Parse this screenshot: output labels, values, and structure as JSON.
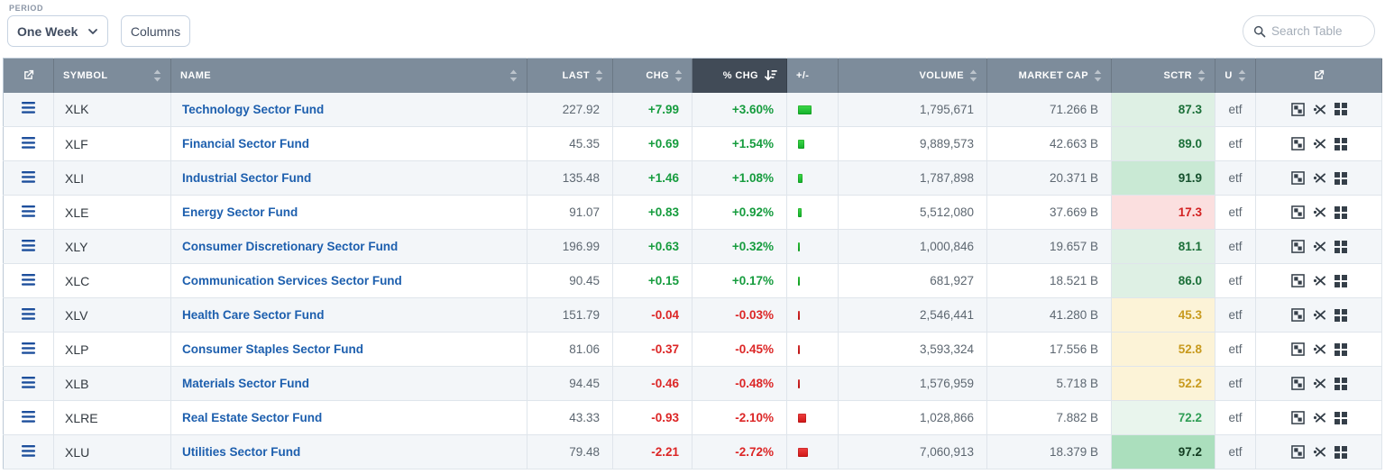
{
  "controls": {
    "period_label": "PERIOD",
    "period_value": "One Week",
    "columns_button": "Columns",
    "search_placeholder": "Search Table"
  },
  "colors": {
    "positive": "#169c3e",
    "negative": "#dc2626",
    "header_bg": "#7d8c9b",
    "header_sorted_bg": "#414b57",
    "link_blue": "#1d5fae"
  },
  "table": {
    "columns": [
      {
        "key": "open",
        "label": "",
        "align": "center",
        "icon": "external-link-icon",
        "sort": "none"
      },
      {
        "key": "symbol",
        "label": "SYMBOL",
        "align": "left",
        "sort": "idle"
      },
      {
        "key": "name",
        "label": "NAME",
        "align": "left",
        "sort": "idle"
      },
      {
        "key": "last",
        "label": "LAST",
        "align": "right",
        "sort": "idle"
      },
      {
        "key": "chg",
        "label": "CHG",
        "align": "right",
        "sort": "idle"
      },
      {
        "key": "pct",
        "label": "% CHG",
        "align": "right",
        "sort": "desc"
      },
      {
        "key": "bar",
        "label": "+/-",
        "align": "left",
        "sort": "none"
      },
      {
        "key": "volume",
        "label": "VOLUME",
        "align": "right",
        "sort": "idle"
      },
      {
        "key": "mcap",
        "label": "MARKET CAP",
        "align": "right",
        "sort": "idle"
      },
      {
        "key": "sctr",
        "label": "SCTR",
        "align": "right",
        "sort": "idle"
      },
      {
        "key": "u",
        "label": "U",
        "align": "center",
        "sort": "idle"
      },
      {
        "key": "actions",
        "label": "",
        "align": "center",
        "icon": "external-link-icon",
        "sort": "none"
      }
    ],
    "row_icons": [
      "menu-icon",
      "chart-icon",
      "perf-chart-icon",
      "gallery-view-icon"
    ],
    "rows": [
      {
        "symbol": "XLK",
        "name": "Technology Sector Fund",
        "last": "227.92",
        "chg": "+7.99",
        "pct": "+3.60%",
        "pct_num": 3.6,
        "volume": "1,795,671",
        "market_cap": "71.266 B",
        "sctr": "87.3",
        "sctr_bg": "#def0e4",
        "sctr_fg": "#1b6f38",
        "u": "etf"
      },
      {
        "symbol": "XLF",
        "name": "Financial Sector Fund",
        "last": "45.35",
        "chg": "+0.69",
        "pct": "+1.54%",
        "pct_num": 1.54,
        "volume": "9,889,573",
        "market_cap": "42.663 B",
        "sctr": "89.0",
        "sctr_bg": "#def0e4",
        "sctr_fg": "#1b6f38",
        "u": "etf"
      },
      {
        "symbol": "XLI",
        "name": "Industrial Sector Fund",
        "last": "135.48",
        "chg": "+1.46",
        "pct": "+1.08%",
        "pct_num": 1.08,
        "volume": "1,787,898",
        "market_cap": "20.371 B",
        "sctr": "91.9",
        "sctr_bg": "#c9e9d4",
        "sctr_fg": "#14502c",
        "u": "etf"
      },
      {
        "symbol": "XLE",
        "name": "Energy Sector Fund",
        "last": "91.07",
        "chg": "+0.83",
        "pct": "+0.92%",
        "pct_num": 0.92,
        "volume": "5,512,080",
        "market_cap": "37.669 B",
        "sctr": "17.3",
        "sctr_bg": "#fbdfdf",
        "sctr_fg": "#d32222",
        "u": "etf"
      },
      {
        "symbol": "XLY",
        "name": "Consumer Discretionary Sector Fund",
        "last": "196.99",
        "chg": "+0.63",
        "pct": "+0.32%",
        "pct_num": 0.32,
        "volume": "1,000,846",
        "market_cap": "19.657 B",
        "sctr": "81.1",
        "sctr_bg": "#def0e4",
        "sctr_fg": "#1b6f38",
        "u": "etf"
      },
      {
        "symbol": "XLC",
        "name": "Communication Services Sector Fund",
        "last": "90.45",
        "chg": "+0.15",
        "pct": "+0.17%",
        "pct_num": 0.17,
        "volume": "681,927",
        "market_cap": "18.521 B",
        "sctr": "86.0",
        "sctr_bg": "#def0e4",
        "sctr_fg": "#1b6f38",
        "u": "etf"
      },
      {
        "symbol": "XLV",
        "name": "Health Care Sector Fund",
        "last": "151.79",
        "chg": "-0.04",
        "pct": "-0.03%",
        "pct_num": -0.03,
        "volume": "2,546,441",
        "market_cap": "41.280 B",
        "sctr": "45.3",
        "sctr_bg": "#fcf3d7",
        "sctr_fg": "#c89a1e",
        "u": "etf"
      },
      {
        "symbol": "XLP",
        "name": "Consumer Staples Sector Fund",
        "last": "81.06",
        "chg": "-0.37",
        "pct": "-0.45%",
        "pct_num": -0.45,
        "volume": "3,593,324",
        "market_cap": "17.556 B",
        "sctr": "52.8",
        "sctr_bg": "#fcf3d7",
        "sctr_fg": "#c89a1e",
        "u": "etf"
      },
      {
        "symbol": "XLB",
        "name": "Materials Sector Fund",
        "last": "94.45",
        "chg": "-0.46",
        "pct": "-0.48%",
        "pct_num": -0.48,
        "volume": "1,576,959",
        "market_cap": "5.718 B",
        "sctr": "52.2",
        "sctr_bg": "#fcf3d7",
        "sctr_fg": "#c89a1e",
        "u": "etf"
      },
      {
        "symbol": "XLRE",
        "name": "Real Estate Sector Fund",
        "last": "43.33",
        "chg": "-0.93",
        "pct": "-2.10%",
        "pct_num": -2.1,
        "volume": "1,028,866",
        "market_cap": "7.882 B",
        "sctr": "72.2",
        "sctr_bg": "#e9f5ed",
        "sctr_fg": "#2f9e55",
        "u": "etf"
      },
      {
        "symbol": "XLU",
        "name": "Utilities Sector Fund",
        "last": "79.48",
        "chg": "-2.21",
        "pct": "-2.72%",
        "pct_num": -2.72,
        "volume": "7,060,913",
        "market_cap": "18.379 B",
        "sctr": "97.2",
        "sctr_bg": "#abdfbd",
        "sctr_fg": "#123b20",
        "u": "etf"
      }
    ]
  }
}
